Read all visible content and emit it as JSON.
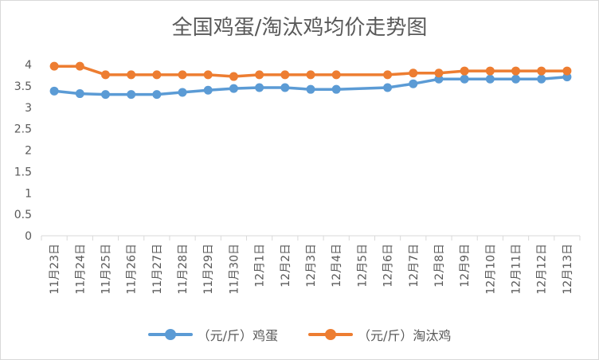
{
  "chart_data": {
    "type": "line",
    "title": "全国鸡蛋/淘汰鸡均价走势图",
    "categories": [
      "11月23日",
      "11月24日",
      "11月25日",
      "11月26日",
      "11月27日",
      "11月28日",
      "11月29日",
      "11月30日",
      "12月1日",
      "12月2日",
      "12月3日",
      "12月4日",
      "12月5日",
      "12月6日",
      "12月7日",
      "12月8日",
      "12月9日",
      "12月10日",
      "12月11日",
      "12月12日",
      "12月13日"
    ],
    "ylim": [
      0,
      4
    ],
    "yticks": [
      0,
      0.5,
      1,
      1.5,
      2,
      2.5,
      3,
      3.5,
      4
    ],
    "ytick_labels": [
      "0",
      "0.5",
      "1",
      "1.5",
      "2",
      "2.5",
      "3",
      "3.5",
      "4"
    ],
    "grid": false,
    "legend_position": "bottom",
    "series": [
      {
        "name": "（元/斤）鸡蛋",
        "color": "#5b9bd5",
        "values": [
          3.38,
          3.32,
          3.3,
          3.3,
          3.3,
          3.35,
          3.4,
          3.44,
          3.46,
          3.46,
          3.42,
          3.42,
          null,
          3.46,
          3.55,
          3.66,
          3.66,
          3.66,
          3.66,
          3.66,
          3.71
        ]
      },
      {
        "name": "（元/斤）淘汰鸡",
        "color": "#ed7d31",
        "values": [
          3.96,
          3.96,
          3.76,
          3.76,
          3.76,
          3.76,
          3.76,
          3.72,
          3.76,
          3.76,
          3.76,
          3.76,
          null,
          3.76,
          3.8,
          3.8,
          3.85,
          3.85,
          3.85,
          3.85,
          3.85
        ]
      }
    ]
  }
}
